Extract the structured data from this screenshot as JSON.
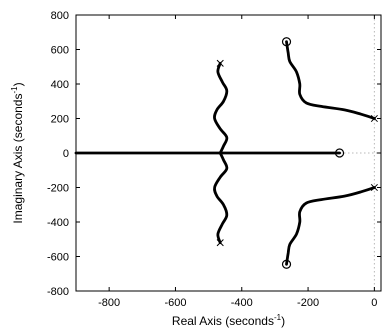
{
  "chart_data": {
    "type": "line",
    "title": "",
    "xlabel": "Real Axis (seconds",
    "xlabel_sup": "-1",
    "xlabel_end": ")",
    "ylabel": "Imaginary Axis (seconds",
    "ylabel_sup": "-1",
    "ylabel_end": ")",
    "xlim": [
      -900,
      20
    ],
    "ylim": [
      -800,
      800
    ],
    "x_ticks": [
      -800,
      -600,
      -400,
      -200,
      0
    ],
    "x_tick_labels": [
      "-800",
      "-600",
      "-400",
      "-200",
      "0"
    ],
    "y_ticks": [
      -800,
      -600,
      -400,
      -200,
      0,
      200,
      400,
      600,
      800
    ],
    "y_tick_labels": [
      "-800",
      "-600",
      "-400",
      "-200",
      "0",
      "200",
      "400",
      "600",
      "800"
    ],
    "grid": false,
    "guide_lines": {
      "x": 0,
      "y": 0
    },
    "poles": [
      {
        "x": -465,
        "y": 520
      },
      {
        "x": -465,
        "y": -520
      },
      {
        "x": 0,
        "y": 200
      },
      {
        "x": 0,
        "y": -200
      }
    ],
    "zeros": [
      {
        "x": -265,
        "y": 645
      },
      {
        "x": -265,
        "y": -645
      },
      {
        "x": -105,
        "y": 0
      }
    ],
    "series": [
      {
        "points": [
          [
            -465,
            520
          ],
          [
            -472,
            470
          ],
          [
            -458,
            410
          ],
          [
            -445,
            360
          ],
          [
            -455,
            300
          ],
          [
            -475,
            250
          ],
          [
            -482,
            200
          ],
          [
            -465,
            140
          ],
          [
            -445,
            90
          ],
          [
            -455,
            40
          ],
          [
            -465,
            0
          ]
        ]
      },
      {
        "points": [
          [
            -465,
            -520
          ],
          [
            -472,
            -470
          ],
          [
            -458,
            -410
          ],
          [
            -445,
            -360
          ],
          [
            -455,
            -300
          ],
          [
            -475,
            -250
          ],
          [
            -482,
            -200
          ],
          [
            -465,
            -140
          ],
          [
            -445,
            -90
          ],
          [
            -455,
            -40
          ],
          [
            -465,
            0
          ]
        ]
      },
      {
        "points": [
          [
            0,
            200
          ],
          [
            -40,
            225
          ],
          [
            -90,
            250
          ],
          [
            -160,
            270
          ],
          [
            -205,
            290
          ],
          [
            -225,
            340
          ],
          [
            -225,
            400
          ],
          [
            -235,
            470
          ],
          [
            -255,
            530
          ],
          [
            -260,
            580
          ],
          [
            -265,
            645
          ]
        ]
      },
      {
        "points": [
          [
            0,
            -200
          ],
          [
            -40,
            -225
          ],
          [
            -90,
            -250
          ],
          [
            -160,
            -270
          ],
          [
            -205,
            -290
          ],
          [
            -225,
            -340
          ],
          [
            -225,
            -400
          ],
          [
            -235,
            -470
          ],
          [
            -255,
            -530
          ],
          [
            -260,
            -580
          ],
          [
            -265,
            -645
          ]
        ]
      },
      {
        "points": [
          [
            -900,
            0
          ],
          [
            -105,
            0
          ]
        ]
      }
    ]
  }
}
